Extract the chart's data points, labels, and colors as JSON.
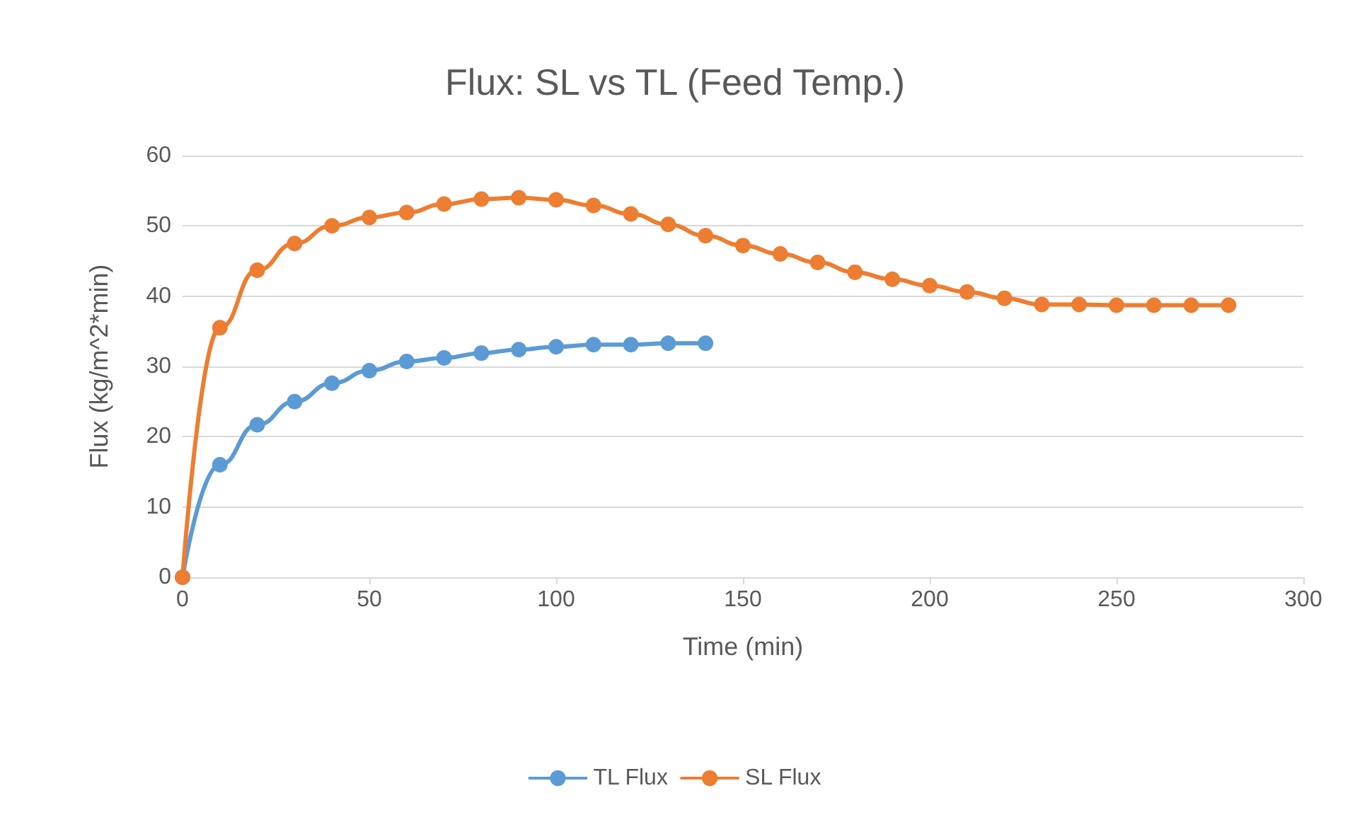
{
  "chart_data": {
    "type": "line",
    "title": "Flux: SL vs TL (Feed Temp.)",
    "xlabel": "Time (min)",
    "ylabel": "Flux (kg/m^2*min)",
    "xlim": [
      0,
      300
    ],
    "xticks": [
      0,
      50,
      100,
      150,
      200,
      250,
      300
    ],
    "ylim": [
      0,
      60
    ],
    "yticks": [
      0,
      10,
      20,
      30,
      40,
      50,
      60
    ],
    "grid": "y",
    "legend": "bottom",
    "marker": "circle",
    "line_style": "solid",
    "series": [
      {
        "name": "TL Flux",
        "color": "#5b9bd5",
        "x": [
          0,
          10,
          20,
          30,
          40,
          50,
          60,
          70,
          80,
          90,
          100,
          110,
          120,
          130,
          140
        ],
        "values": [
          0,
          16,
          21.7,
          25,
          27.6,
          29.4,
          30.7,
          31.2,
          31.9,
          32.4,
          32.8,
          33.1,
          33.1,
          33.3,
          33.3
        ]
      },
      {
        "name": "SL Flux",
        "color": "#ed7d31",
        "x": [
          0,
          10,
          20,
          30,
          40,
          50,
          60,
          70,
          80,
          90,
          100,
          110,
          120,
          130,
          140,
          150,
          160,
          170,
          180,
          190,
          200,
          210,
          220,
          230,
          240,
          250,
          260,
          270,
          280
        ],
        "values": [
          0,
          35.5,
          43.7,
          47.5,
          50,
          51.2,
          51.9,
          53.1,
          53.8,
          54,
          53.7,
          52.9,
          51.7,
          50.2,
          48.6,
          47.2,
          46,
          44.8,
          43.4,
          42.4,
          41.5,
          40.6,
          39.7,
          38.8,
          38.8,
          38.7,
          38.7,
          38.7,
          38.7
        ]
      }
    ]
  }
}
